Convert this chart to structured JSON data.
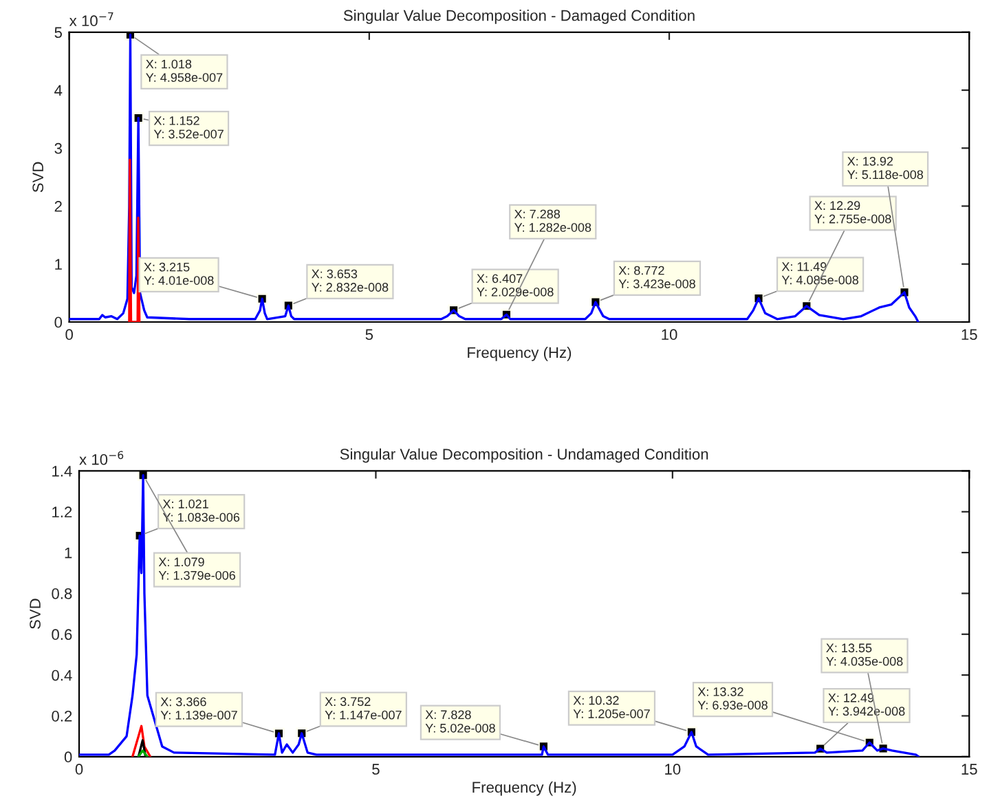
{
  "chart_data": [
    {
      "type": "line",
      "title": "Singular Value Decomposition - Damaged Condition",
      "xlabel": "Frequency (Hz)",
      "ylabel": "SVD",
      "xlim": [
        0,
        15
      ],
      "xticks": [
        0,
        5,
        10,
        15
      ],
      "ylim": [
        0,
        5
      ],
      "yticks": [
        0,
        1,
        2,
        3,
        4,
        5
      ],
      "grid": false,
      "series": [
        {
          "color": "#0000ff",
          "x": [
            0,
            0.5,
            0.55,
            0.6,
            0.7,
            0.8,
            0.9,
            0.97,
            1.0,
            1.018,
            1.04,
            1.08,
            1.12,
            1.152,
            1.18,
            1.25,
            1.3,
            2.0,
            3.1,
            3.18,
            3.215,
            3.26,
            3.3,
            3.6,
            3.653,
            3.7,
            3.75,
            6.2,
            6.3,
            6.407,
            6.5,
            6.6,
            7.2,
            7.288,
            7.35,
            8.6,
            8.7,
            8.772,
            8.9,
            9.0,
            11.3,
            11.4,
            11.49,
            11.6,
            11.8,
            12.1,
            12.29,
            12.5,
            12.9,
            13.2,
            13.5,
            13.7,
            13.92,
            14.0,
            14.1,
            14.15
          ],
          "values": [
            0.05,
            0.05,
            0.12,
            0.08,
            0.1,
            0.05,
            0.15,
            0.4,
            2.0,
            4.958,
            0.6,
            0.5,
            0.8,
            3.52,
            0.5,
            0.2,
            0.08,
            0.05,
            0.05,
            0.2,
            0.401,
            0.15,
            0.05,
            0.1,
            0.2832,
            0.1,
            0.05,
            0.05,
            0.1,
            0.2029,
            0.1,
            0.05,
            0.05,
            0.1282,
            0.05,
            0.05,
            0.15,
            0.3423,
            0.1,
            0.05,
            0.05,
            0.2,
            0.4085,
            0.15,
            0.05,
            0.1,
            0.2755,
            0.12,
            0.05,
            0.1,
            0.25,
            0.3,
            0.5118,
            0.25,
            0.1,
            0
          ]
        },
        {
          "color": "#ff0000",
          "x": [
            1.0,
            1.01,
            1.03,
            1.14,
            1.15,
            1.17
          ],
          "values": [
            0,
            2.8,
            0,
            0,
            1.8,
            0
          ]
        }
      ],
      "annotations": [
        "x 10$^{−7}$",
        {
          "text": "X: 1.018\nY: 4.958e-007",
          "x": 1.018,
          "y": 4.958
        },
        {
          "text": "X: 1.152\nY: 3.52e-007",
          "x": 1.152,
          "y": 3.52
        },
        {
          "text": "X: 3.215\nY: 4.01e-008",
          "x": 3.215,
          "y": 0.401
        },
        {
          "text": "X: 3.653\nY: 2.832e-008",
          "x": 3.653,
          "y": 0.2832
        },
        {
          "text": "X: 6.407\nY: 2.029e-008",
          "x": 6.407,
          "y": 0.2029
        },
        {
          "text": "X: 7.288\nY: 1.282e-008",
          "x": 7.288,
          "y": 0.1282
        },
        {
          "text": "X: 8.772\nY: 3.423e-008",
          "x": 8.772,
          "y": 0.3423
        },
        {
          "text": "X: 11.49\nY: 4.085e-008",
          "x": 11.49,
          "y": 0.4085
        },
        {
          "text": "X: 12.29\nY: 2.755e-008",
          "x": 12.29,
          "y": 0.2755
        },
        {
          "text": "X: 13.92\nY: 5.118e-008",
          "x": 13.92,
          "y": 0.5118
        }
      ]
    },
    {
      "type": "line",
      "title": "Singular Value Decomposition - Undamaged Condition",
      "xlabel": "Frequency (Hz)",
      "ylabel": "SVD",
      "xlim": [
        0,
        15
      ],
      "xticks": [
        0,
        5,
        10,
        15
      ],
      "ylim": [
        0,
        1.4
      ],
      "yticks": [
        0,
        0.2,
        0.4,
        0.6,
        0.8,
        1,
        1.2,
        1.4
      ],
      "grid": false,
      "series": [
        {
          "color": "#0000ff",
          "x": [
            0,
            0.5,
            0.6,
            0.8,
            0.9,
            0.97,
            1.021,
            1.05,
            1.079,
            1.1,
            1.15,
            1.25,
            1.4,
            1.6,
            3.3,
            3.366,
            3.42,
            3.5,
            3.6,
            3.7,
            3.752,
            3.85,
            4.0,
            7.8,
            7.828,
            7.9,
            10.0,
            10.2,
            10.32,
            10.4,
            10.6,
            12.4,
            12.49,
            12.6,
            13.2,
            13.32,
            13.45,
            13.55,
            13.7,
            14.1,
            14.15
          ],
          "values": [
            0.01,
            0.01,
            0.03,
            0.1,
            0.3,
            0.5,
            1.083,
            0.9,
            1.379,
            0.8,
            0.3,
            0.2,
            0.05,
            0.02,
            0.01,
            0.1139,
            0.02,
            0.06,
            0.02,
            0.06,
            0.1147,
            0.02,
            0.01,
            0.01,
            0.0502,
            0.01,
            0.01,
            0.05,
            0.1205,
            0.05,
            0.01,
            0.02,
            0.03942,
            0.02,
            0.03,
            0.0693,
            0.03,
            0.04035,
            0.03,
            0.01,
            0
          ]
        },
        {
          "color": "#ff0000",
          "x": [
            0.9,
            1.0,
            1.05,
            1.1,
            1.2
          ],
          "values": [
            0,
            0.1,
            0.15,
            0.05,
            0
          ]
        },
        {
          "color": "#000000",
          "x": [
            1.0,
            1.07,
            1.12
          ],
          "values": [
            0,
            0.08,
            0
          ]
        },
        {
          "color": "#00aa00",
          "x": [
            1.0,
            1.07,
            1.15
          ],
          "values": [
            0,
            0.03,
            0
          ]
        }
      ],
      "annotations": [
        "x 10$^{−6}$",
        {
          "text": "X: 1.021\nY: 1.083e-006",
          "x": 1.021,
          "y": 1.083
        },
        {
          "text": "X: 1.079\nY: 1.379e-006",
          "x": 1.079,
          "y": 1.379
        },
        {
          "text": "X: 3.366\nY: 1.139e-007",
          "x": 3.366,
          "y": 0.1139
        },
        {
          "text": "X: 3.752\nY: 1.147e-007",
          "x": 3.752,
          "y": 0.1147
        },
        {
          "text": "X: 7.828\nY: 5.02e-008",
          "x": 7.828,
          "y": 0.0502
        },
        {
          "text": "X: 10.32\nY: 1.205e-007",
          "x": 10.32,
          "y": 0.1205
        },
        {
          "text": "X: 12.49\nY: 3.942e-008",
          "x": 12.49,
          "y": 0.03942
        },
        {
          "text": "X: 13.32\nY: 6.93e-008",
          "x": 13.32,
          "y": 0.0693
        },
        {
          "text": "X: 13.55\nY: 4.035e-008",
          "x": 13.55,
          "y": 0.04035
        }
      ]
    }
  ]
}
